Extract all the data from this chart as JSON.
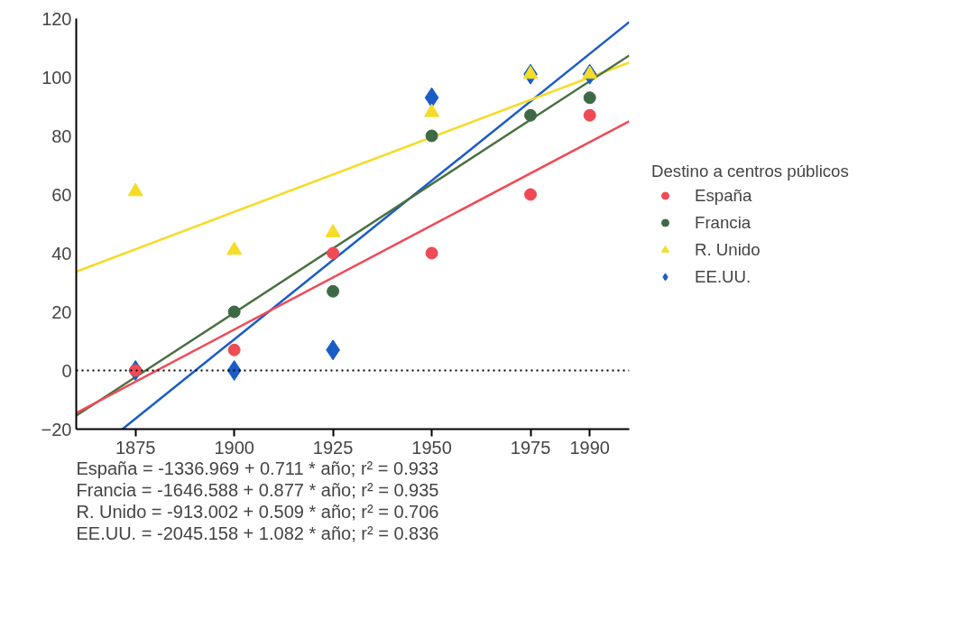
{
  "chart_data": {
    "type": "scatter",
    "x": [
      1875,
      1900,
      1925,
      1950,
      1975,
      1990
    ],
    "legend_title": "Destino a centros públicos",
    "series": [
      {
        "name": "España",
        "color": "#f04a55",
        "marker": "circle",
        "values": [
          0,
          7,
          40,
          40,
          60,
          87
        ]
      },
      {
        "name": "Francia",
        "color": "#3d6a45",
        "marker": "circle",
        "values": [
          0,
          20,
          27,
          80,
          87,
          93
        ]
      },
      {
        "name": "R. Unido",
        "color": "#f5dc28",
        "marker": "triangle",
        "values": [
          61,
          41,
          47,
          88,
          101,
          101
        ]
      },
      {
        "name": "EE.UU.",
        "color": "#1a5cc8",
        "marker": "diamond",
        "values": [
          0,
          0,
          7,
          93,
          101,
          101
        ]
      },
      {
        "type": "line",
        "color": "#f04a55",
        "x": [
          1860,
          2000
        ],
        "values": [
          -14.5,
          85.0
        ]
      },
      {
        "type": "line",
        "color": "#4a7040",
        "x": [
          1860,
          2000
        ],
        "values": [
          -15.4,
          107.4
        ]
      },
      {
        "type": "line",
        "color": "#f5dc28",
        "x": [
          1860,
          2000
        ],
        "values": [
          33.7,
          105.0
        ]
      },
      {
        "type": "line",
        "color": "#1a5cc8",
        "x": [
          1871.7,
          2000
        ],
        "values": [
          -20,
          118.8
        ]
      }
    ],
    "xlim": [
      1860,
      2000
    ],
    "ylim": [
      -20,
      120
    ],
    "xticks": [
      1875,
      1900,
      1925,
      1950,
      1975,
      1990
    ],
    "yticks": [
      -20,
      0,
      20,
      40,
      60,
      80,
      100,
      120
    ],
    "ref_lines": [
      {
        "axis": "y",
        "value": 0,
        "label": null,
        "color": "#000000",
        "line_style": "dotted"
      }
    ],
    "grid": false,
    "legend": "right",
    "line_style": "solid",
    "annotations": [
      "España = -1336.969 + 0.711 * año; r² = 0.933",
      "Francia = -1646.588 + 0.877 * año; r² = 0.935",
      "R. Unido = -913.002 + 0.509 * año; r² = 0.706",
      "EE.UU. = -2045.158 + 1.082 * año; r² = 0.836"
    ]
  }
}
